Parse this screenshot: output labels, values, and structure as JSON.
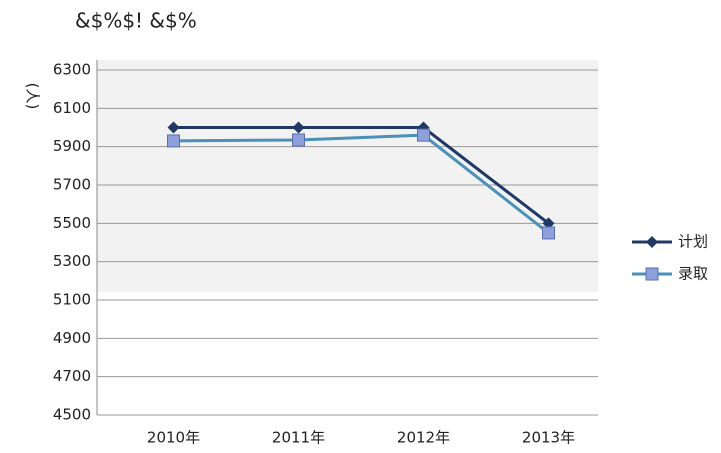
{
  "chart_data": {
    "type": "line",
    "title": "&$%$! &$%",
    "y_label": "(人)",
    "categories": [
      "2010年",
      "2011年",
      "2012年",
      "2013年"
    ],
    "series": [
      {
        "name": "计划",
        "color": "#1f3864",
        "marker": "diamond",
        "values": [
          6000,
          6000,
          6000,
          5500
        ]
      },
      {
        "name": "录取",
        "color": "#4a90b8",
        "marker": "square",
        "values": [
          5930,
          5935,
          5960,
          5450
        ]
      }
    ],
    "ylim": [
      4500,
      6300
    ],
    "yticks": [
      4500,
      4700,
      4900,
      5100,
      5300,
      5500,
      5700,
      5900,
      6100,
      6300
    ],
    "grid": true,
    "legend": "right"
  }
}
